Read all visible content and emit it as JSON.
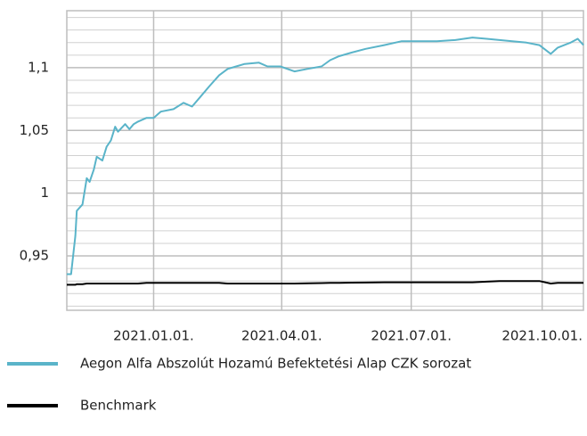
{
  "chart_data": {
    "type": "line",
    "x": [
      "2020-11-01",
      "2020-11-04",
      "2020-11-07",
      "2020-11-08",
      "2020-11-12",
      "2020-11-15",
      "2020-11-17",
      "2020-11-20",
      "2020-11-22",
      "2020-11-26",
      "2020-11-29",
      "2020-12-02",
      "2020-12-05",
      "2020-12-07",
      "2020-12-12",
      "2020-12-15",
      "2020-12-18",
      "2020-12-21",
      "2020-12-27",
      "2021-01-01",
      "2021-01-06",
      "2021-01-15",
      "2021-01-22",
      "2021-01-28",
      "2021-02-03",
      "2021-02-09",
      "2021-02-16",
      "2021-02-22",
      "2021-02-28",
      "2021-03-06",
      "2021-03-16",
      "2021-03-22",
      "2021-03-31",
      "2021-04-10",
      "2021-04-19",
      "2021-04-29",
      "2021-05-05",
      "2021-05-11",
      "2021-05-20",
      "2021-05-30",
      "2021-06-12",
      "2021-06-24",
      "2021-07-07",
      "2021-07-19",
      "2021-08-01",
      "2021-08-13",
      "2021-08-23",
      "2021-09-01",
      "2021-09-10",
      "2021-09-20",
      "2021-09-29",
      "2021-10-07",
      "2021-10-12",
      "2021-10-21",
      "2021-10-26",
      "2021-10-30"
    ],
    "series": [
      {
        "name": "Aegon Alfa Abszolút Hozamú Befektetési Alap CZK sorozat",
        "color": "#5ab4c9",
        "values": [
          0.9355,
          0.9355,
          0.966,
          0.986,
          0.991,
          1.012,
          1.009,
          1.019,
          1.029,
          1.026,
          1.037,
          1.042,
          1.053,
          1.049,
          1.055,
          1.051,
          1.055,
          1.057,
          1.06,
          1.06,
          1.065,
          1.067,
          1.072,
          1.069,
          1.077,
          1.085,
          1.094,
          1.099,
          1.101,
          1.103,
          1.104,
          1.101,
          1.101,
          1.097,
          1.099,
          1.101,
          1.106,
          1.109,
          1.112,
          1.115,
          1.118,
          1.121,
          1.121,
          1.121,
          1.122,
          1.124,
          1.123,
          1.122,
          1.121,
          1.12,
          1.118,
          1.111,
          1.116,
          1.12,
          1.123,
          1.118
        ]
      },
      {
        "name": "Benchmark",
        "color": "#000000",
        "values": [
          0.927,
          0.927,
          0.927,
          0.9275,
          0.9275,
          0.928,
          0.928,
          0.928,
          0.928,
          0.928,
          0.928,
          0.928,
          0.928,
          0.928,
          0.928,
          0.928,
          0.928,
          0.928,
          0.9285,
          0.9285,
          0.9285,
          0.9285,
          0.9285,
          0.9285,
          0.9285,
          0.9285,
          0.9285,
          0.928,
          0.928,
          0.928,
          0.928,
          0.928,
          0.928,
          0.928,
          0.9282,
          0.9284,
          0.9285,
          0.9285,
          0.9287,
          0.9288,
          0.929,
          0.929,
          0.929,
          0.929,
          0.929,
          0.929,
          0.9295,
          0.93,
          0.93,
          0.93,
          0.93,
          0.928,
          0.9285,
          0.9285,
          0.9285,
          0.9285
        ]
      }
    ],
    "xlim": [
      "2020-11-01",
      "2021-10-30"
    ],
    "xticks": [
      {
        "value": "2021-01-01",
        "label": "2021.01.01."
      },
      {
        "value": "2021-04-01",
        "label": "2021.04.01."
      },
      {
        "value": "2021-07-01",
        "label": "2021.07.01."
      },
      {
        "value": "2021-10-01",
        "label": "2021.10.01."
      }
    ],
    "ylim": [
      0.9067,
      1.1454
    ],
    "yticks": [
      {
        "value": 0.95,
        "label": "0,95"
      },
      1,
      {
        "value": 1.05,
        "label": "1,05"
      },
      {
        "value": 1.1,
        "label": "1,1"
      }
    ],
    "yticks_minor": [
      0.91,
      0.92,
      0.93,
      0.94,
      0.96,
      0.97,
      0.98,
      0.99,
      1.01,
      1.02,
      1.03,
      1.04,
      1.06,
      1.07,
      1.08,
      1.09,
      1.11,
      1.12,
      1.13,
      1.14
    ],
    "grid": true
  }
}
